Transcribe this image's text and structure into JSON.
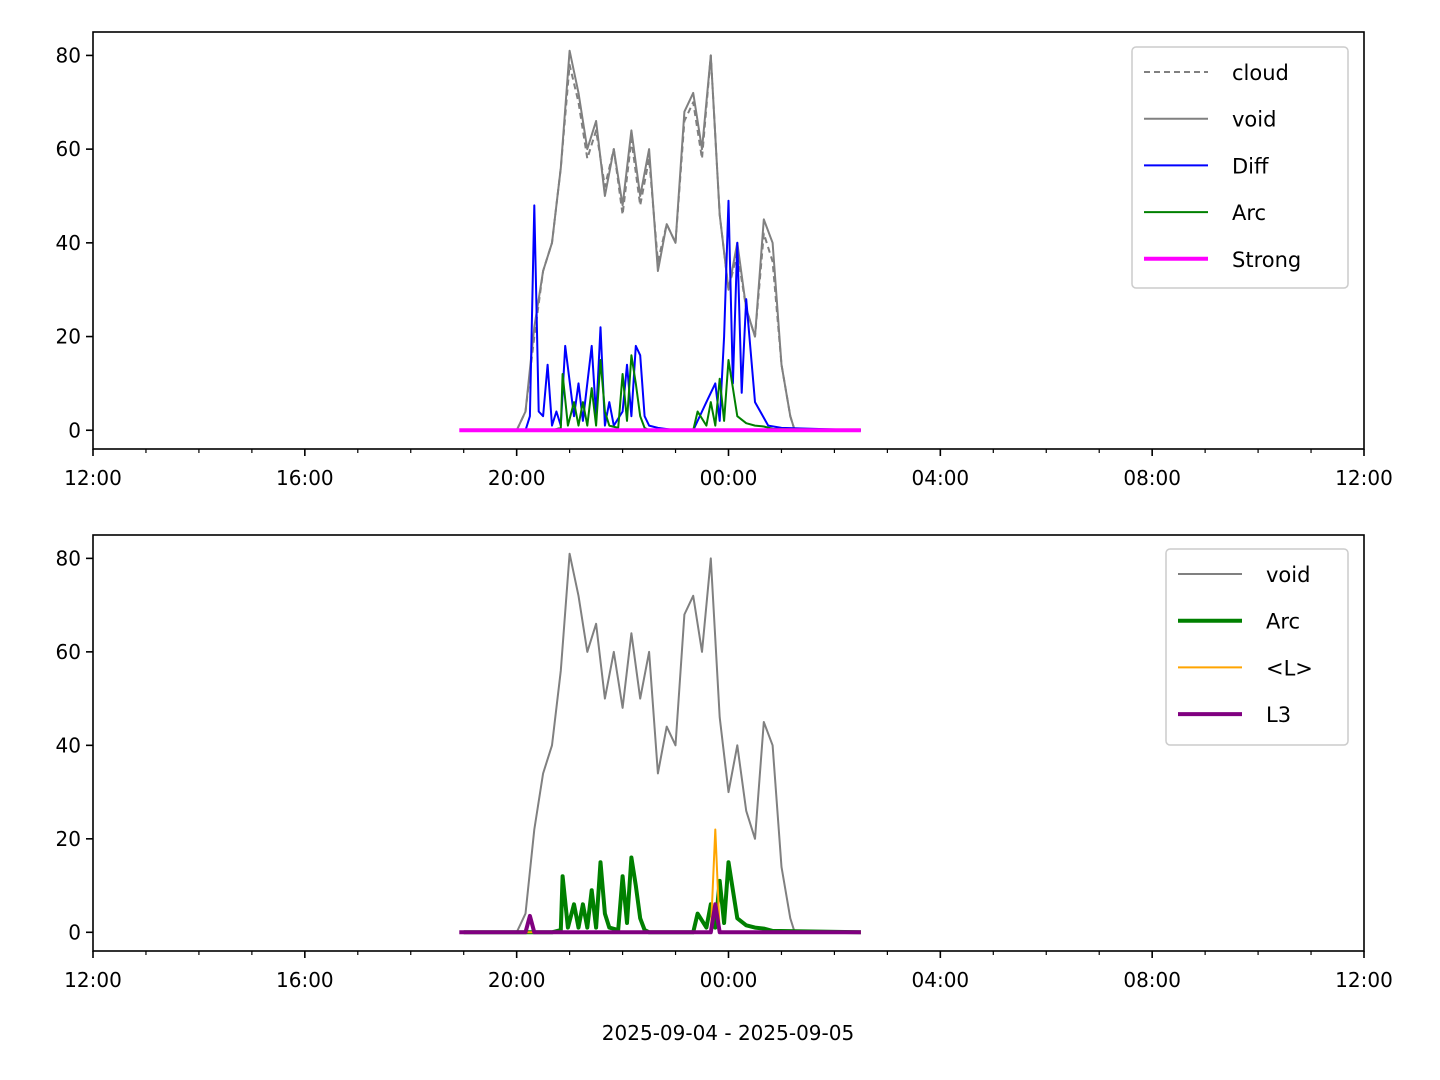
{
  "chart_data": [
    {
      "type": "line",
      "x_axis": {
        "type": "time",
        "range": [
          "2025-09-04T12:00",
          "2025-09-05T12:00"
        ],
        "tick_labels": [
          "12:00",
          "16:00",
          "20:00",
          "00:00",
          "04:00",
          "08:00",
          "12:00"
        ],
        "minor_tick_hours": 1
      },
      "y_axis": {
        "range": [
          -4,
          85
        ],
        "ticks": [
          0,
          20,
          40,
          60,
          80
        ]
      },
      "xlabel": "",
      "grid": false,
      "legend": {
        "placement": "top-right",
        "entries": [
          "cloud",
          "void",
          "Diff",
          "Arc",
          "Strong"
        ]
      },
      "series": [
        {
          "name": "cloud",
          "color": "#808080",
          "style": "dashed",
          "x": [
            "2025-09-04T20:00",
            "2025-09-04T20:10",
            "2025-09-04T20:20",
            "2025-09-04T20:30",
            "2025-09-04T20:40",
            "2025-09-04T20:50",
            "2025-09-04T21:00",
            "2025-09-04T21:10",
            "2025-09-04T21:20",
            "2025-09-04T21:30",
            "2025-09-04T21:40",
            "2025-09-04T21:50",
            "2025-09-04T22:00",
            "2025-09-04T22:10",
            "2025-09-04T22:20",
            "2025-09-04T22:30",
            "2025-09-04T22:40",
            "2025-09-04T22:50",
            "2025-09-04T23:00",
            "2025-09-04T23:10",
            "2025-09-04T23:20",
            "2025-09-04T23:30",
            "2025-09-04T23:40",
            "2025-09-04T23:50",
            "2025-09-05T00:00",
            "2025-09-05T00:10",
            "2025-09-05T00:20",
            "2025-09-05T00:30",
            "2025-09-05T00:40",
            "2025-09-05T00:50",
            "2025-09-05T01:00",
            "2025-09-05T01:10",
            "2025-09-05T01:15"
          ],
          "values": [
            0,
            4,
            20,
            34,
            40,
            56,
            78,
            70,
            58,
            64,
            52,
            60,
            46,
            62,
            48,
            58,
            36,
            44,
            40,
            66,
            70,
            58,
            80,
            46,
            30,
            38,
            26,
            20,
            42,
            36,
            14,
            3,
            0
          ]
        },
        {
          "name": "void",
          "color": "#808080",
          "style": "solid",
          "x": [
            "2025-09-04T20:00",
            "2025-09-04T20:10",
            "2025-09-04T20:20",
            "2025-09-04T20:30",
            "2025-09-04T20:40",
            "2025-09-04T20:50",
            "2025-09-04T21:00",
            "2025-09-04T21:10",
            "2025-09-04T21:20",
            "2025-09-04T21:30",
            "2025-09-04T21:40",
            "2025-09-04T21:50",
            "2025-09-04T22:00",
            "2025-09-04T22:10",
            "2025-09-04T22:20",
            "2025-09-04T22:30",
            "2025-09-04T22:40",
            "2025-09-04T22:50",
            "2025-09-04T23:00",
            "2025-09-04T23:10",
            "2025-09-04T23:20",
            "2025-09-04T23:30",
            "2025-09-04T23:40",
            "2025-09-04T23:50",
            "2025-09-05T00:00",
            "2025-09-05T00:10",
            "2025-09-05T00:20",
            "2025-09-05T00:30",
            "2025-09-05T00:40",
            "2025-09-05T00:50",
            "2025-09-05T01:00",
            "2025-09-05T01:10",
            "2025-09-05T01:15"
          ],
          "values": [
            0,
            4,
            22,
            34,
            40,
            56,
            81,
            72,
            60,
            66,
            50,
            60,
            48,
            64,
            50,
            60,
            34,
            44,
            40,
            68,
            72,
            60,
            80,
            46,
            30,
            40,
            26,
            20,
            45,
            40,
            14,
            3,
            0
          ]
        },
        {
          "name": "Diff",
          "color": "#0000ff",
          "style": "solid",
          "x": [
            "2025-09-04T19:00",
            "2025-09-04T20:10",
            "2025-09-04T20:15",
            "2025-09-04T20:20",
            "2025-09-04T20:25",
            "2025-09-04T20:30",
            "2025-09-04T20:35",
            "2025-09-04T20:40",
            "2025-09-04T20:45",
            "2025-09-04T20:50",
            "2025-09-04T20:55",
            "2025-09-04T21:05",
            "2025-09-04T21:10",
            "2025-09-04T21:15",
            "2025-09-04T21:25",
            "2025-09-04T21:30",
            "2025-09-04T21:35",
            "2025-09-04T21:40",
            "2025-09-04T21:45",
            "2025-09-04T21:50",
            "2025-09-04T22:00",
            "2025-09-04T22:05",
            "2025-09-04T22:10",
            "2025-09-04T22:15",
            "2025-09-04T22:20",
            "2025-09-04T22:25",
            "2025-09-04T22:30",
            "2025-09-04T22:40",
            "2025-09-04T23:00",
            "2025-09-04T23:20",
            "2025-09-04T23:30",
            "2025-09-04T23:35",
            "2025-09-04T23:45",
            "2025-09-04T23:50",
            "2025-09-04T23:55",
            "2025-09-05T00:00",
            "2025-09-05T00:05",
            "2025-09-05T00:10",
            "2025-09-05T00:15",
            "2025-09-05T00:20",
            "2025-09-05T00:30",
            "2025-09-05T00:45",
            "2025-09-05T01:00",
            "2025-09-05T02:30"
          ],
          "values": [
            0,
            0,
            3,
            48,
            4,
            3,
            14,
            1,
            4,
            1,
            18,
            3,
            10,
            2,
            18,
            3,
            22,
            1,
            6,
            1,
            4,
            14,
            3,
            18,
            16,
            3,
            1,
            0.5,
            0,
            0,
            4,
            6,
            10,
            2,
            20,
            49,
            10,
            40,
            8,
            28,
            6,
            1,
            0.5,
            0
          ]
        },
        {
          "name": "Arc",
          "color": "#008000",
          "style": "solid",
          "x": [
            "2025-09-04T19:00",
            "2025-09-04T20:40",
            "2025-09-04T20:50",
            "2025-09-04T20:52",
            "2025-09-04T20:58",
            "2025-09-04T21:05",
            "2025-09-04T21:10",
            "2025-09-04T21:15",
            "2025-09-04T21:20",
            "2025-09-04T21:25",
            "2025-09-04T21:30",
            "2025-09-04T21:35",
            "2025-09-04T21:40",
            "2025-09-04T21:45",
            "2025-09-04T21:55",
            "2025-09-04T22:00",
            "2025-09-04T22:05",
            "2025-09-04T22:10",
            "2025-09-04T22:15",
            "2025-09-04T22:20",
            "2025-09-04T22:25",
            "2025-09-04T22:30",
            "2025-09-04T23:20",
            "2025-09-04T23:25",
            "2025-09-04T23:35",
            "2025-09-04T23:40",
            "2025-09-04T23:45",
            "2025-09-04T23:50",
            "2025-09-04T23:55",
            "2025-09-05T00:00",
            "2025-09-05T00:10",
            "2025-09-05T00:20",
            "2025-09-05T00:30",
            "2025-09-05T00:40",
            "2025-09-05T00:50",
            "2025-09-05T02:30"
          ],
          "values": [
            0,
            0,
            0.5,
            12,
            1,
            6,
            1,
            6,
            1,
            9,
            1,
            15,
            4,
            1,
            0.5,
            12,
            2,
            16,
            10,
            3,
            0.5,
            0,
            0,
            4,
            1,
            6,
            1,
            11,
            2,
            15,
            3,
            1.5,
            1,
            0.8,
            0.3,
            0
          ]
        },
        {
          "name": "Strong",
          "color": "#ff00ff",
          "style": "solid",
          "x": [
            "2025-09-04T18:55",
            "2025-09-05T02:30"
          ],
          "values": [
            0,
            0
          ]
        }
      ]
    },
    {
      "type": "line",
      "x_axis": {
        "type": "time",
        "range": [
          "2025-09-04T12:00",
          "2025-09-05T12:00"
        ],
        "tick_labels": [
          "12:00",
          "16:00",
          "20:00",
          "00:00",
          "04:00",
          "08:00",
          "12:00"
        ],
        "minor_tick_hours": 1
      },
      "y_axis": {
        "range": [
          -4,
          85
        ],
        "ticks": [
          0,
          20,
          40,
          60,
          80
        ]
      },
      "xlabel": "2025-09-04 - 2025-09-05",
      "grid": false,
      "legend": {
        "placement": "top-right",
        "entries": [
          "void",
          "Arc",
          "<L>",
          "L3"
        ]
      },
      "series": [
        {
          "name": "void",
          "color": "#808080",
          "style": "solid",
          "x": [
            "2025-09-04T20:00",
            "2025-09-04T20:10",
            "2025-09-04T20:20",
            "2025-09-04T20:30",
            "2025-09-04T20:40",
            "2025-09-04T20:50",
            "2025-09-04T21:00",
            "2025-09-04T21:10",
            "2025-09-04T21:20",
            "2025-09-04T21:30",
            "2025-09-04T21:40",
            "2025-09-04T21:50",
            "2025-09-04T22:00",
            "2025-09-04T22:10",
            "2025-09-04T22:20",
            "2025-09-04T22:30",
            "2025-09-04T22:40",
            "2025-09-04T22:50",
            "2025-09-04T23:00",
            "2025-09-04T23:10",
            "2025-09-04T23:20",
            "2025-09-04T23:30",
            "2025-09-04T23:40",
            "2025-09-04T23:50",
            "2025-09-05T00:00",
            "2025-09-05T00:10",
            "2025-09-05T00:20",
            "2025-09-05T00:30",
            "2025-09-05T00:40",
            "2025-09-05T00:50",
            "2025-09-05T01:00",
            "2025-09-05T01:10",
            "2025-09-05T01:15"
          ],
          "values": [
            0,
            4,
            22,
            34,
            40,
            56,
            81,
            72,
            60,
            66,
            50,
            60,
            48,
            64,
            50,
            60,
            34,
            44,
            40,
            68,
            72,
            60,
            80,
            46,
            30,
            40,
            26,
            20,
            45,
            40,
            14,
            3,
            0
          ]
        },
        {
          "name": "Arc",
          "color": "#008000",
          "style": "solid",
          "x": [
            "2025-09-04T19:00",
            "2025-09-04T20:40",
            "2025-09-04T20:50",
            "2025-09-04T20:52",
            "2025-09-04T20:58",
            "2025-09-04T21:05",
            "2025-09-04T21:10",
            "2025-09-04T21:15",
            "2025-09-04T21:20",
            "2025-09-04T21:25",
            "2025-09-04T21:30",
            "2025-09-04T21:35",
            "2025-09-04T21:40",
            "2025-09-04T21:45",
            "2025-09-04T21:55",
            "2025-09-04T22:00",
            "2025-09-04T22:05",
            "2025-09-04T22:10",
            "2025-09-04T22:15",
            "2025-09-04T22:20",
            "2025-09-04T22:25",
            "2025-09-04T22:30",
            "2025-09-04T23:20",
            "2025-09-04T23:25",
            "2025-09-04T23:35",
            "2025-09-04T23:40",
            "2025-09-04T23:45",
            "2025-09-04T23:50",
            "2025-09-04T23:55",
            "2025-09-05T00:00",
            "2025-09-05T00:10",
            "2025-09-05T00:20",
            "2025-09-05T00:30",
            "2025-09-05T00:40",
            "2025-09-05T00:50",
            "2025-09-05T02:30"
          ],
          "values": [
            0,
            0,
            0.5,
            12,
            1,
            6,
            1,
            6,
            1,
            9,
            1,
            15,
            4,
            1,
            0.5,
            12,
            2,
            16,
            10,
            3,
            0.5,
            0,
            0,
            4,
            1,
            6,
            1,
            11,
            2,
            15,
            3,
            1.5,
            1,
            0.8,
            0.3,
            0
          ]
        },
        {
          "name": "<L>",
          "color": "#ffa500",
          "style": "solid",
          "x": [
            "2025-09-04T19:00",
            "2025-09-04T23:40",
            "2025-09-04T23:45",
            "2025-09-04T23:50",
            "2025-09-05T02:30"
          ],
          "values": [
            0,
            0,
            22,
            0,
            0
          ]
        },
        {
          "name": "L3",
          "color": "#800080",
          "style": "solid",
          "x": [
            "2025-09-04T18:55",
            "2025-09-04T20:10",
            "2025-09-04T20:15",
            "2025-09-04T20:20",
            "2025-09-04T23:40",
            "2025-09-04T23:45",
            "2025-09-04T23:50",
            "2025-09-05T02:30"
          ],
          "values": [
            0,
            0,
            3.5,
            0,
            0,
            6,
            0,
            0
          ]
        }
      ]
    }
  ]
}
